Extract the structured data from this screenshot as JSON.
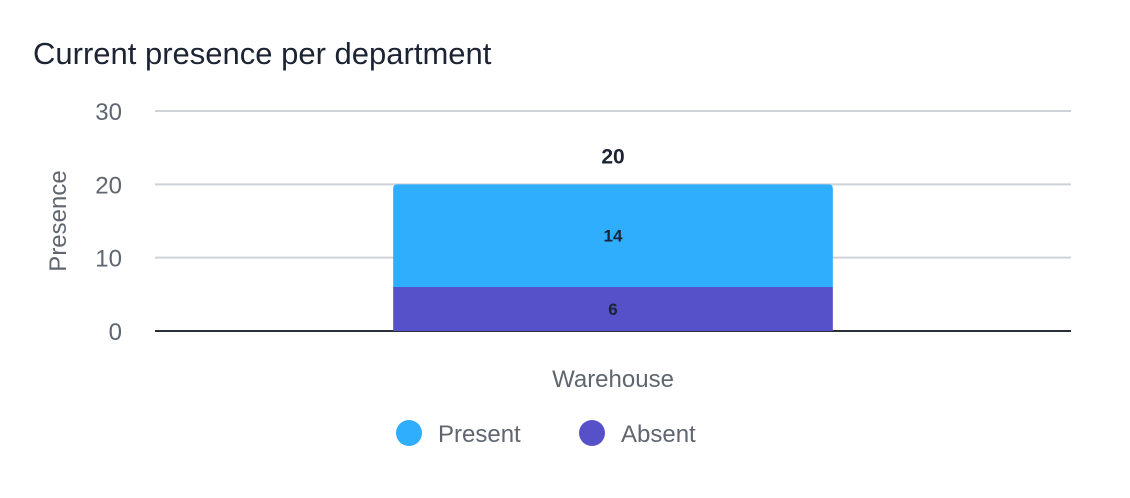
{
  "chart_data": {
    "type": "bar",
    "stacked": true,
    "title": "Current presence per department",
    "xlabel": "",
    "ylabel": "Presence",
    "categories": [
      "Warehouse"
    ],
    "ylim": [
      0,
      30
    ],
    "yticks": [
      0,
      10,
      20,
      30
    ],
    "grid": true,
    "legend_position": "bottom",
    "series": [
      {
        "name": "Absent",
        "values": [
          6
        ],
        "color": "#5650c9"
      },
      {
        "name": "Present",
        "values": [
          14
        ],
        "color": "#2eaefd"
      }
    ],
    "totals": [
      20
    ],
    "legend": [
      {
        "name": "Present",
        "color": "#2eaefd"
      },
      {
        "name": "Absent",
        "color": "#5650c9"
      }
    ]
  }
}
